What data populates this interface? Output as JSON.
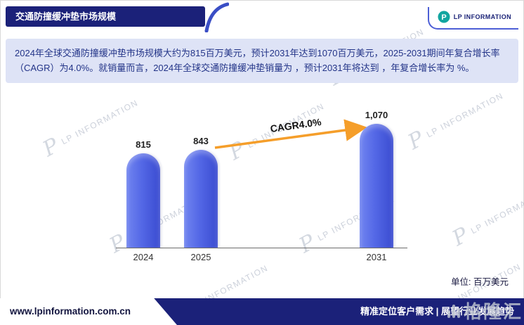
{
  "header": {
    "title": "交通防撞缓冲垫市场规模",
    "logo_text": "LP INFORMATION",
    "logo_icon": "P"
  },
  "summary": "2024年全球交通防撞缓冲垫市场规模大约为815百万美元，预计2031年达到1070百万美元，2025-2031期间年复合增长率（CAGR）为4.0%。就销量而言，2024年全球交通防撞缓冲垫销量为 ，预计2031年将达到 ，年复合增长率为 %。",
  "chart_data": {
    "type": "bar",
    "title": "交通防撞缓冲垫市场规模",
    "categories": [
      "2024",
      "2025",
      "2031"
    ],
    "values": [
      815,
      843,
      1070
    ],
    "value_labels": [
      "815",
      "843",
      "1,070"
    ],
    "annotation": "CAGR4.0%",
    "unit_label": "单位: 百万美元",
    "xlabel": "",
    "ylabel": "",
    "ylim": [
      0,
      1070
    ],
    "grid": false,
    "legend": "none",
    "bar_color": "#4b5fe0",
    "arrow_color": "#f59e2a"
  },
  "footer": {
    "website": "www.lpinformation.com.cn",
    "slogan": "精准定位客户需求 | 展望行业发展趋势"
  },
  "watermark": {
    "text": "LP INFORMATION",
    "mark": "P",
    "corner_text": "格隆汇"
  }
}
